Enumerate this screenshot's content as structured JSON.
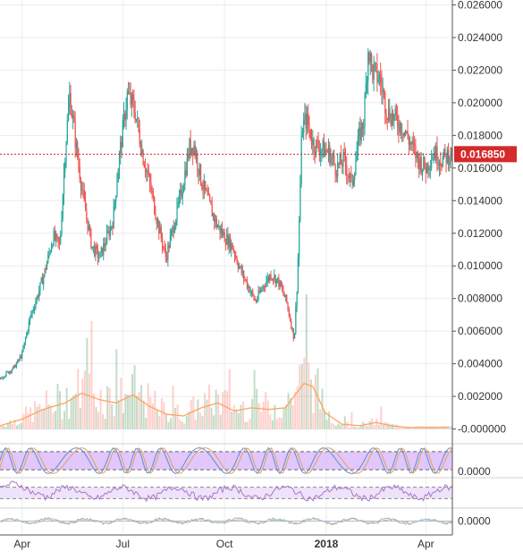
{
  "chart_data": {
    "type": "line",
    "price_axis": {
      "ticks": [
        "0.026000",
        "0.024000",
        "0.022000",
        "0.020000",
        "0.018000",
        "0.016000",
        "0.014000",
        "0.012000",
        "0.010000",
        "0.008000",
        "0.006000",
        "0.004000",
        "0.002000",
        "-0.000000"
      ],
      "tick_values": [
        0.026,
        0.024,
        0.022,
        0.02,
        0.018,
        0.016,
        0.014,
        0.012,
        0.01,
        0.008,
        0.006,
        0.004,
        0.002,
        0.0
      ],
      "ylim": [
        -0.0009,
        0.0263
      ]
    },
    "last_price": {
      "label": "0.016850",
      "value": 0.01685
    },
    "time_axis": {
      "labels": [
        "Apr",
        "Jul",
        "Oct",
        "2018",
        "Apr"
      ],
      "dates": [
        "2017-04-01",
        "2017-07-01",
        "2017-10-01",
        "2018-01-01",
        "2018-04-01"
      ],
      "xlim": [
        "2017-03-12",
        "2018-04-25"
      ]
    },
    "price_series": {
      "dates": [
        "2017-03-12",
        "2017-03-25",
        "2017-04-01",
        "2017-04-08",
        "2017-04-15",
        "2017-04-22",
        "2017-04-29",
        "2017-05-05",
        "2017-05-10",
        "2017-05-14",
        "2017-05-20",
        "2017-05-27",
        "2017-06-03",
        "2017-06-10",
        "2017-06-17",
        "2017-06-22",
        "2017-06-27",
        "2017-07-05",
        "2017-07-12",
        "2017-07-19",
        "2017-07-26",
        "2017-08-02",
        "2017-08-09",
        "2017-08-16",
        "2017-08-23",
        "2017-08-30",
        "2017-09-03",
        "2017-09-10",
        "2017-09-17",
        "2017-09-24",
        "2017-10-01",
        "2017-10-08",
        "2017-10-15",
        "2017-10-22",
        "2017-10-29",
        "2017-11-05",
        "2017-11-12",
        "2017-11-19",
        "2017-11-26",
        "2017-12-03",
        "2017-12-06",
        "2017-12-10",
        "2017-12-14",
        "2017-12-20",
        "2017-12-27",
        "2018-01-03",
        "2018-01-10",
        "2018-01-17",
        "2018-01-24",
        "2018-01-31",
        "2018-02-04",
        "2018-02-08",
        "2018-02-11",
        "2018-02-18",
        "2018-02-25",
        "2018-03-04",
        "2018-03-11",
        "2018-03-18",
        "2018-03-25",
        "2018-04-01",
        "2018-04-08",
        "2018-04-15",
        "2018-04-22"
      ],
      "close": [
        0.0031,
        0.0038,
        0.0046,
        0.0068,
        0.0082,
        0.0098,
        0.0118,
        0.0112,
        0.0172,
        0.0205,
        0.0172,
        0.0138,
        0.0112,
        0.0105,
        0.0118,
        0.0128,
        0.0162,
        0.0205,
        0.0195,
        0.0168,
        0.0148,
        0.0125,
        0.0105,
        0.0125,
        0.0145,
        0.0172,
        0.0175,
        0.0152,
        0.0138,
        0.0125,
        0.0118,
        0.0112,
        0.0098,
        0.0088,
        0.0078,
        0.0088,
        0.0095,
        0.009,
        0.0078,
        0.0055,
        0.0095,
        0.0185,
        0.019,
        0.0175,
        0.0172,
        0.017,
        0.016,
        0.0165,
        0.015,
        0.018,
        0.019,
        0.0235,
        0.022,
        0.0215,
        0.0195,
        0.019,
        0.0185,
        0.0175,
        0.0165,
        0.016,
        0.017,
        0.0165,
        0.01685
      ]
    },
    "volume_ma_series": {
      "dates": [
        "2017-03-12",
        "2017-04-01",
        "2017-04-20",
        "2017-05-10",
        "2017-05-25",
        "2017-06-10",
        "2017-06-25",
        "2017-07-10",
        "2017-07-25",
        "2017-08-10",
        "2017-08-25",
        "2017-09-10",
        "2017-09-25",
        "2017-10-10",
        "2017-10-25",
        "2017-11-10",
        "2017-11-25",
        "2017-12-05",
        "2017-12-12",
        "2017-12-20",
        "2017-12-31",
        "2018-01-15",
        "2018-02-01",
        "2018-02-15",
        "2018-03-01",
        "2018-03-15",
        "2018-04-01",
        "2018-04-22"
      ],
      "values": [
        0.0002,
        0.0006,
        0.0012,
        0.0016,
        0.0022,
        0.0018,
        0.0016,
        0.0021,
        0.0014,
        0.0009,
        0.0008,
        0.0013,
        0.0016,
        0.0011,
        0.0013,
        0.0012,
        0.0013,
        0.0022,
        0.0028,
        0.0026,
        0.001,
        0.0003,
        0.0002,
        0.0004,
        0.0002,
        0.0001,
        0.0001,
        0.0001
      ]
    },
    "panels": [
      {
        "name": "",
        "tick_label": "0.0000"
      },
      {
        "name": "",
        "tick_label": ""
      },
      {
        "name": "",
        "tick_label": "0.0000"
      }
    ],
    "reference_line": {
      "value": 0.01685
    },
    "grid": true,
    "colors": {
      "up": "#26a69a",
      "down": "#ef5350",
      "ma": "#ffa35e",
      "osc": "#aa78c8",
      "band": "#d7b4f8",
      "panel3": "#c3a982",
      "price_line": "#d42a2a",
      "axis": "#555555"
    }
  }
}
